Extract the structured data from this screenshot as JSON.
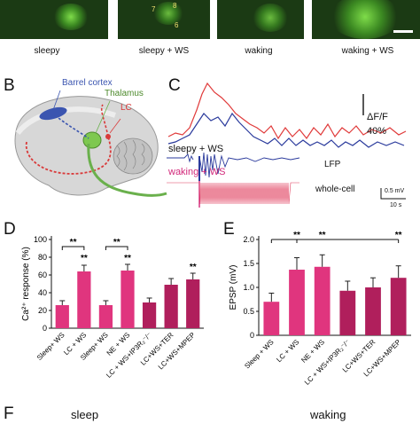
{
  "panel_a": {
    "labels": [
      "sleepy",
      "sleepy + WS",
      "waking",
      "waking + WS"
    ],
    "roi_labels": [
      "7",
      "8",
      "6"
    ]
  },
  "panel_b": {
    "letter": "B",
    "labels": [
      "Barrel cortex",
      "Thalamus",
      "LC"
    ],
    "colors": {
      "cortex": "#3b55b0",
      "thalamus": "#6ab04c",
      "lc_path": "#d93a3a",
      "brain": "#c8c8c8"
    }
  },
  "panel_c": {
    "letter": "C",
    "scale_label_1": "ΔF/F",
    "scale_label_2": "40%",
    "trace_sleepy_label": "sleepy + WS",
    "trace_waking_label": "waking + WS",
    "lfp_label": "LFP",
    "wholecell_label": "whole-cell",
    "scale_mv": "0.5 mV",
    "scale_s": "10 s",
    "colors": {
      "sleepy": "#2a3a9c",
      "waking": "#e03a3a",
      "sleepy_label": "#111111",
      "waking_label": "#d2287a"
    }
  },
  "panel_d": {
    "letter": "D",
    "sig": [
      "**",
      "**",
      "**",
      "**",
      "**"
    ],
    "chart_data": {
      "type": "bar",
      "ylabel": "Ca²⁺ response (%)",
      "ylim": [
        0,
        100
      ],
      "yticks": [
        0,
        20,
        40,
        60,
        80,
        100
      ],
      "categories": [
        "Sleep+ WS",
        "LC + WS",
        "Sleep+ WS",
        "NE + WS",
        "LC + WS+IP3R₂⁻/⁻",
        "LC+WS+TER",
        "LC+WS+MPEP"
      ],
      "values": [
        26,
        64,
        26,
        65,
        29,
        49,
        55
      ],
      "errors": [
        5,
        7,
        5,
        7,
        5,
        7,
        7
      ],
      "colors": [
        "#e0357e",
        "#e0357e",
        "#e0357e",
        "#e0357e",
        "#b01f5c",
        "#b01f5c",
        "#b01f5c"
      ]
    }
  },
  "panel_e": {
    "letter": "E",
    "sig": [
      "**",
      "**",
      "**"
    ],
    "chart_data": {
      "type": "bar",
      "ylabel": "EPSP (mV)",
      "ylim": [
        0,
        2.0
      ],
      "yticks": [
        0,
        0.5,
        1.0,
        1.5,
        2.0
      ],
      "categories": [
        "Sleep + WS",
        "LC + WS",
        "NE + WS",
        "LC + WS+IP3R₂⁻/⁻",
        "LC+WS+TER",
        "LC+WS+MPEP"
      ],
      "values": [
        0.7,
        1.37,
        1.43,
        0.93,
        1.0,
        1.2
      ],
      "errors": [
        0.18,
        0.25,
        0.25,
        0.2,
        0.2,
        0.25
      ],
      "colors": [
        "#e0357e",
        "#e0357e",
        "#e0357e",
        "#b01f5c",
        "#b01f5c",
        "#b01f5c"
      ]
    }
  },
  "panel_f": {
    "letter": "F",
    "label_sleep": "sleep",
    "label_waking": "waking"
  }
}
